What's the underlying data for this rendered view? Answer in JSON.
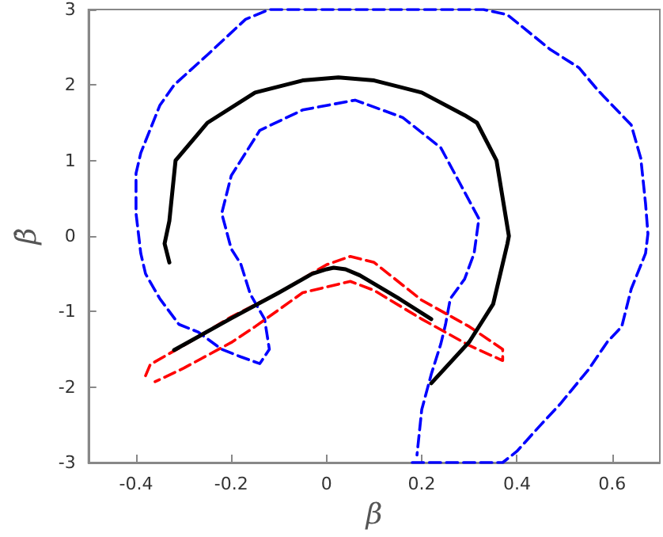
{
  "chart_data": {
    "type": "line",
    "xlabel": "β",
    "ylabel": "β̇",
    "xlim": [
      -0.5,
      0.7
    ],
    "ylim": [
      -3,
      3
    ],
    "xticks": [
      -0.4,
      -0.2,
      0,
      0.2,
      0.4,
      0.6
    ],
    "yticks": [
      -3,
      -2,
      -1,
      0,
      1,
      2,
      3
    ],
    "grid": false,
    "marker": "none",
    "series": [
      {
        "color": "#0000ff",
        "line_style": "dashed",
        "x": [
          0.18,
          0.25,
          0.32,
          0.37,
          0.4,
          0.45,
          0.49,
          0.55,
          0.59,
          0.62,
          0.64,
          0.67,
          0.675,
          0.67,
          0.66,
          0.64,
          0.57,
          0.53,
          0.47,
          0.38,
          0.33,
          0.1,
          -0.12,
          -0.17,
          -0.25,
          -0.32,
          -0.35,
          -0.39,
          -0.4,
          -0.4,
          -0.39,
          -0.38,
          -0.35,
          -0.31,
          -0.27,
          -0.22,
          -0.18,
          -0.14,
          -0.12,
          -0.13,
          -0.16,
          -0.18,
          -0.2,
          -0.22,
          -0.2,
          -0.14,
          -0.05,
          0.06,
          0.16,
          0.24,
          0.28,
          0.32,
          0.31,
          0.29,
          0.26,
          0.25,
          0.24,
          0.22,
          0.2,
          0.19
        ],
        "values": [
          -3,
          -3,
          -3,
          -3,
          -2.85,
          -2.5,
          -2.23,
          -1.77,
          -1.4,
          -1.2,
          -0.7,
          -0.23,
          0.03,
          0.43,
          1.03,
          1.47,
          1.93,
          2.23,
          2.47,
          2.93,
          3,
          3,
          3,
          2.87,
          2.4,
          2,
          1.73,
          1.1,
          0.83,
          0.3,
          -0.23,
          -0.5,
          -0.83,
          -1.17,
          -1.27,
          -1.5,
          -1.6,
          -1.69,
          -1.5,
          -1.1,
          -0.77,
          -0.37,
          -0.17,
          0.3,
          0.8,
          1.4,
          1.67,
          1.8,
          1.57,
          1.17,
          0.7,
          0.23,
          -0.23,
          -0.57,
          -0.83,
          -1.17,
          -1.43,
          -1.83,
          -2.3,
          -2.9
        ]
      },
      {
        "color": "#ff0000",
        "line_style": "dashed",
        "x": [
          -0.38,
          -0.37,
          -0.3,
          -0.2,
          -0.1,
          0,
          0.05,
          0.1,
          0.2,
          0.3,
          0.37,
          0.37,
          0.3,
          0.2,
          0.1,
          0.05,
          -0.05,
          -0.15,
          -0.2,
          -0.3,
          -0.36
        ],
        "values": [
          -1.85,
          -1.7,
          -1.45,
          -1.07,
          -0.75,
          -0.38,
          -0.27,
          -0.35,
          -0.85,
          -1.2,
          -1.5,
          -1.65,
          -1.45,
          -1.1,
          -0.72,
          -0.6,
          -0.75,
          -1.2,
          -1.41,
          -1.75,
          -1.93
        ]
      },
      {
        "color": "#000000",
        "line_style": "solid",
        "x": [
          -0.33,
          -0.34,
          -0.33,
          -0.317,
          -0.25,
          -0.15,
          -0.05,
          0.025,
          0.1,
          0.2,
          0.29,
          0.316,
          0.357,
          0.383,
          0.38,
          0.35,
          0.3,
          0.22
        ],
        "values": [
          -0.35,
          -0.1,
          0.2,
          1,
          1.5,
          1.9,
          2.06,
          2.1,
          2.06,
          1.9,
          1.6,
          1.5,
          1,
          0,
          -0.1,
          -0.9,
          -1.4,
          -1.95
        ]
      },
      {
        "color": "#000000",
        "line_style": "solid",
        "x": [
          -0.32,
          -0.2,
          -0.1,
          -0.03,
          0,
          0.015,
          0.04,
          0.07,
          0.15,
          0.22
        ],
        "values": [
          -1.51,
          -1.09,
          -0.75,
          -0.5,
          -0.44,
          -0.42,
          -0.44,
          -0.52,
          -0.82,
          -1.1
        ]
      }
    ]
  }
}
